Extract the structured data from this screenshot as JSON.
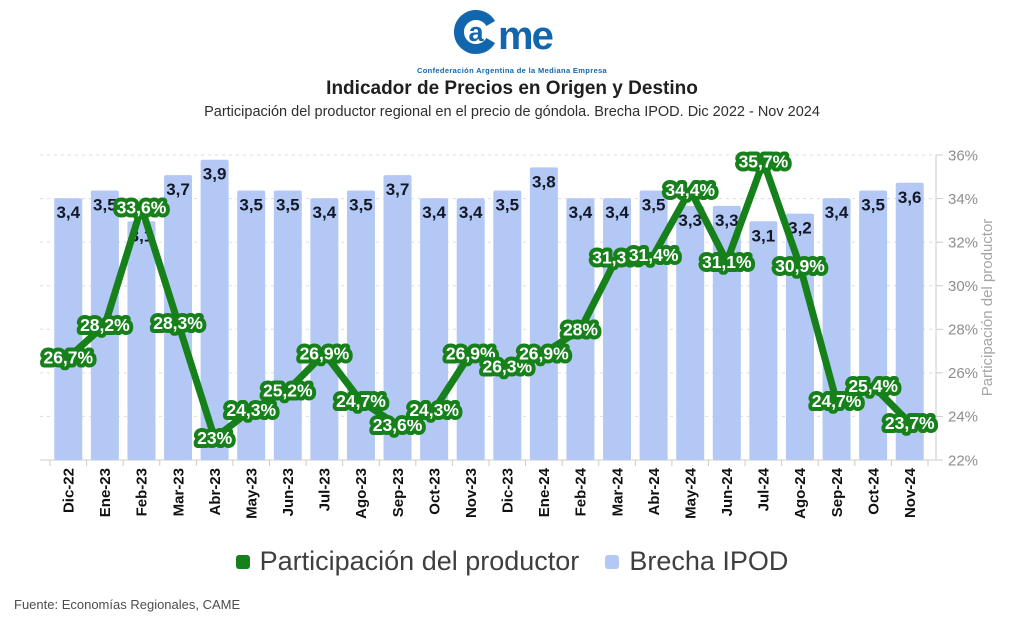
{
  "logo": {
    "name": "Came",
    "tagline": "Confederación Argentina de la Mediana Empresa"
  },
  "header": {
    "title": "Indicador de Precios en Origen y Destino",
    "subtitle": "Participación del productor regional en el precio de góndola. Brecha IPOD. Dic 2022 - Nov 2024"
  },
  "chart_data": {
    "type": "combo-bar-line",
    "categories": [
      "Dic-22",
      "Ene-23",
      "Feb-23",
      "Mar-23",
      "Abr-23",
      "May-23",
      "Jun-23",
      "Jul-23",
      "Ago-23",
      "Sep-23",
      "Oct-23",
      "Nov-23",
      "Dic-23",
      "Ene-24",
      "Feb-24",
      "Mar-24",
      "Abr-24",
      "May-24",
      "Jun-24",
      "Jul-24",
      "Ago-24",
      "Sep-24",
      "Oct-24",
      "Nov-24"
    ],
    "series": [
      {
        "name": "Brecha IPOD",
        "type": "bar",
        "axis": "hidden",
        "axis_min": 0,
        "axis_max": 4,
        "values": [
          3.4,
          3.5,
          3.1,
          3.7,
          3.9,
          3.5,
          3.5,
          3.4,
          3.5,
          3.7,
          3.4,
          3.4,
          3.5,
          3.8,
          3.4,
          3.4,
          3.5,
          3.3,
          3.3,
          3.1,
          3.2,
          3.4,
          3.5,
          3.6
        ],
        "labels": [
          "3,4",
          "3,5",
          "3,1",
          "3,7",
          "3,9",
          "3,5",
          "3,5",
          "3,4",
          "3,5",
          "3,7",
          "3,4",
          "3,4",
          "3,5",
          "3,8",
          "3,4",
          "3,4",
          "3,5",
          "3,3",
          "3,3",
          "3,1",
          "3,2",
          "3,4",
          "3,5",
          "3,6"
        ]
      },
      {
        "name": "Participación del productor",
        "type": "line",
        "axis": "right",
        "values": [
          26.7,
          28.2,
          33.6,
          28.3,
          23,
          24.3,
          25.2,
          26.9,
          24.7,
          23.6,
          24.3,
          26.9,
          26.3,
          26.9,
          28,
          31.3,
          31.4,
          34.4,
          31.1,
          35.7,
          30.9,
          24.7,
          25.4,
          23.7
        ],
        "labels": [
          "26,7%",
          "28,2%",
          "33,6%",
          "28,3%",
          "23%",
          "24,3%",
          "25,2%",
          "26,9%",
          "24,7%",
          "23,6%",
          "24,3%",
          "26,9%",
          "26,3%",
          "26,9%",
          "28%",
          "31,3%",
          "31,4%",
          "34,4%",
          "31,1%",
          "35,7%",
          "30,9%",
          "24,7%",
          "25,4%",
          "23,7%"
        ]
      }
    ],
    "right_axis": {
      "title": "Participación del productor",
      "min": 22,
      "max": 36,
      "tick_step": 2,
      "ticks": [
        "36%",
        "34%",
        "32%",
        "30%",
        "28%",
        "26%",
        "24%",
        "22%"
      ]
    },
    "grid": "dashed-horizontal",
    "legend_position": "bottom"
  },
  "legend": {
    "items": [
      {
        "label": "Participación del productor",
        "color": "#16801b"
      },
      {
        "label": "Brecha IPOD",
        "color": "#b4c8f5"
      }
    ]
  },
  "footer": {
    "source": "Fuente: Economías Regionales, CAME"
  },
  "colors": {
    "bar": "#b4c8f5",
    "line": "#16801b",
    "badge_text": "#ffffff",
    "bar_label": "#111827",
    "x_label": "#111111",
    "axis_text": "#8e8e8e",
    "axis_title": "#a6a6a6",
    "grid": "#dcdcdc",
    "axis_line": "#cccccc",
    "logo_blue": "#1266ae"
  }
}
